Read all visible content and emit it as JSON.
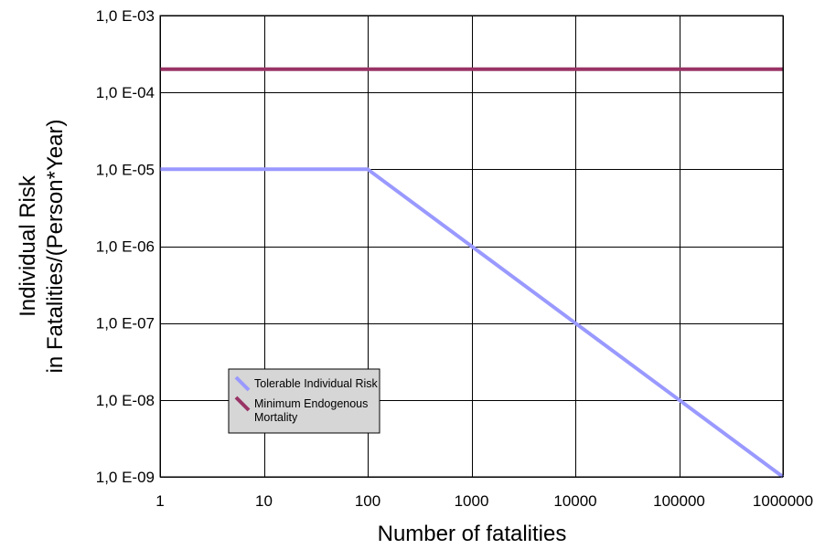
{
  "chart_data": {
    "type": "line",
    "x_scale": "log",
    "y_scale": "log",
    "xlabel": "Number of fatalities",
    "ylabel_lines": [
      "Individual Risk",
      "in Fatalities/(Person*Year)"
    ],
    "xlim": [
      1,
      1000000
    ],
    "ylim": [
      1e-09,
      0.001
    ],
    "x_ticks": [
      1,
      10,
      100,
      1000,
      10000,
      100000,
      1000000
    ],
    "x_tick_labels": [
      "1",
      "10",
      "100",
      "1000",
      "10000",
      "100000",
      "1000000"
    ],
    "y_ticks": [
      1e-09,
      1e-08,
      1e-07,
      1e-06,
      1e-05,
      0.0001,
      0.001
    ],
    "y_tick_labels": [
      "1,0 E-09",
      "1,0 E-08",
      "1,0 E-07",
      "1,0 E-06",
      "1,0 E-05",
      "1,0 E-04",
      "1,0 E-03"
    ],
    "grid": true,
    "legend_position": "lower-left",
    "series": [
      {
        "name": "Tolerable Individual Risk",
        "name_lines": [
          "Tolerable Individual Risk"
        ],
        "color": "#9999ff",
        "x": [
          1,
          100,
          1000,
          10000,
          100000,
          1000000
        ],
        "y": [
          1e-05,
          1e-05,
          1e-06,
          1e-07,
          1e-08,
          1e-09
        ]
      },
      {
        "name": "Minimum Endogenous Mortality",
        "name_lines": [
          "Minimum Endogenous",
          "Mortality"
        ],
        "color": "#993366",
        "x": [
          1,
          1000000
        ],
        "y": [
          0.0002,
          0.0002
        ]
      }
    ]
  }
}
